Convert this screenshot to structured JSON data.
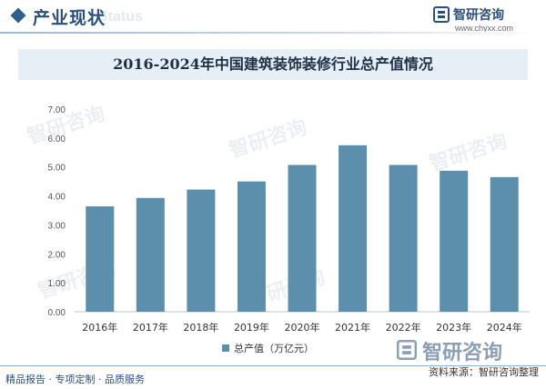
{
  "header": {
    "section_title": "产业现状",
    "ghost_text": "Status"
  },
  "brand": {
    "name": "智研咨询",
    "url": "www.chyxx.com",
    "logo_icon": "zhiyan-logo-icon"
  },
  "chart_data": {
    "type": "bar",
    "title": "2016-2024年中国建筑装饰装修行业总产值情况",
    "categories": [
      "2016年",
      "2017年",
      "2018年",
      "2019年",
      "2020年",
      "2021年",
      "2022年",
      "2023年",
      "2024年"
    ],
    "series": [
      {
        "name": "总产值（万亿元）",
        "values": [
          3.64,
          3.93,
          4.22,
          4.5,
          5.07,
          5.75,
          5.07,
          4.87,
          4.65
        ]
      }
    ],
    "ylim": [
      0,
      7
    ],
    "yticks": [
      "0.00",
      "1.00",
      "2.00",
      "3.00",
      "4.00",
      "5.00",
      "6.00",
      "7.00"
    ],
    "xlabel": "",
    "ylabel": "",
    "grid": false,
    "legend": "bottom",
    "bar_color": "#5b8fab"
  },
  "watermark": {
    "text": "智研咨询"
  },
  "footer": {
    "left": "精品报告 · 专项定制 · 品质服务",
    "source": "资料来源：智研咨询整理"
  }
}
